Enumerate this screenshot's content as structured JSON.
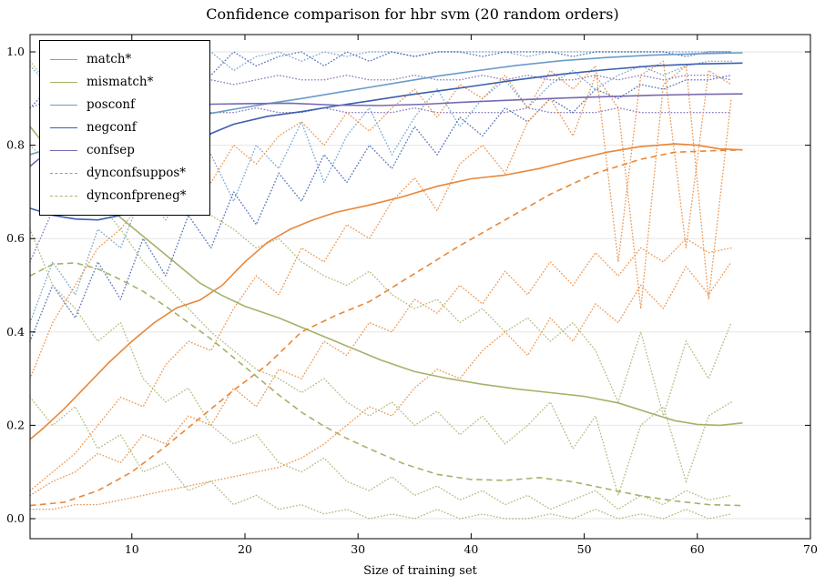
{
  "title": "Confidence comparison for hbr svm (20 random orders)",
  "axes": {
    "xlabel": "Size of training set",
    "x_ticks": [
      10,
      20,
      30,
      40,
      50,
      60,
      70
    ],
    "y_ticks": [
      "0.0",
      "0.2",
      "0.4",
      "0.6",
      "0.8",
      "1.0"
    ],
    "xlim": [
      1,
      70
    ],
    "ylim": [
      -0.043,
      1.037
    ],
    "grid": "horizontal",
    "tick_direction": "in"
  },
  "colors": {
    "orange": "#E8873A",
    "olive": "#A6B16A",
    "lightblue": "#699CC9",
    "navy": "#3D5FAE",
    "purple": "#7769B1",
    "grid": "#e6e6e6",
    "frame": "#000000"
  },
  "legend": [
    {
      "label": "match*",
      "color": "orange",
      "style": "solid"
    },
    {
      "label": "mismatch*",
      "color": "olive",
      "style": "solid"
    },
    {
      "label": "posconf",
      "color": "lightblue",
      "style": "solid"
    },
    {
      "label": "negconf",
      "color": "navy",
      "style": "solid"
    },
    {
      "label": "confsep",
      "color": "purple",
      "style": "solid"
    },
    {
      "label": "dynconfsuppos*",
      "color": "orange",
      "style": "dashed"
    },
    {
      "label": "dynconfpreneg*",
      "color": "olive",
      "style": "dashed"
    }
  ],
  "chart_data": {
    "type": "line",
    "title": "Confidence comparison for hbr svm (20 random orders)",
    "xlabel": "Size of training set",
    "ylabel": "",
    "xlim": [
      1,
      70
    ],
    "ylim": [
      -0.043,
      1.037
    ],
    "legend_position": "upper left",
    "dotted_x": [
      1,
      3,
      5,
      7,
      9,
      11,
      13,
      15,
      17,
      19,
      21,
      23,
      25,
      27,
      29,
      31,
      33,
      35,
      37,
      39,
      41,
      43,
      45,
      47,
      49,
      51,
      53,
      55,
      57,
      59,
      61,
      63
    ],
    "series": [
      {
        "name": "match*",
        "color": "orange",
        "style": "solid",
        "x": [
          1,
          2,
          4,
          6,
          8,
          10,
          12,
          14,
          16,
          18,
          20,
          22,
          24,
          26,
          28,
          31,
          34,
          37,
          40,
          43,
          46,
          49,
          52,
          55,
          58,
          60,
          62,
          64
        ],
        "y": [
          0.17,
          0.19,
          0.235,
          0.285,
          0.335,
          0.38,
          0.42,
          0.452,
          0.468,
          0.5,
          0.55,
          0.592,
          0.62,
          0.64,
          0.656,
          0.672,
          0.69,
          0.712,
          0.728,
          0.736,
          0.75,
          0.768,
          0.785,
          0.797,
          0.803,
          0.8,
          0.792,
          0.79
        ]
      },
      {
        "name": "mismatch*",
        "color": "olive",
        "style": "solid",
        "x": [
          1,
          3,
          5,
          8,
          10,
          12,
          14,
          16,
          18,
          20,
          23,
          26,
          29,
          32,
          35,
          38,
          41,
          44,
          47,
          50,
          53,
          56,
          58,
          60,
          62,
          64
        ],
        "y": [
          0.84,
          0.78,
          0.725,
          0.665,
          0.625,
          0.585,
          0.545,
          0.505,
          0.478,
          0.455,
          0.43,
          0.4,
          0.37,
          0.34,
          0.315,
          0.3,
          0.288,
          0.278,
          0.27,
          0.262,
          0.248,
          0.225,
          0.21,
          0.202,
          0.2,
          0.205
        ]
      },
      {
        "name": "posconf",
        "color": "lightblue",
        "style": "solid",
        "x": [
          1,
          4,
          7,
          10,
          13,
          16,
          19,
          22,
          25,
          28,
          31,
          34,
          37,
          40,
          44,
          48,
          52,
          56,
          60,
          64
        ],
        "y": [
          0.78,
          0.802,
          0.822,
          0.838,
          0.852,
          0.864,
          0.877,
          0.889,
          0.9,
          0.912,
          0.924,
          0.936,
          0.948,
          0.958,
          0.971,
          0.981,
          0.988,
          0.993,
          0.996,
          0.998
        ]
      },
      {
        "name": "negconf",
        "color": "navy",
        "style": "solid",
        "x": [
          1,
          3,
          5,
          7,
          9,
          11,
          13,
          15,
          17,
          19,
          22,
          25,
          28,
          31,
          34,
          37,
          40,
          44,
          48,
          52,
          56,
          60,
          64
        ],
        "y": [
          0.665,
          0.65,
          0.642,
          0.64,
          0.65,
          0.685,
          0.73,
          0.78,
          0.825,
          0.845,
          0.862,
          0.872,
          0.884,
          0.895,
          0.906,
          0.916,
          0.926,
          0.94,
          0.952,
          0.962,
          0.97,
          0.974,
          0.976
        ]
      },
      {
        "name": "confsep",
        "color": "purple",
        "style": "solid",
        "x": [
          1,
          3,
          5,
          8,
          11,
          14,
          17,
          20,
          24,
          28,
          32,
          36,
          40,
          44,
          48,
          52,
          56,
          60,
          64
        ],
        "y": [
          0.755,
          0.795,
          0.825,
          0.856,
          0.872,
          0.882,
          0.888,
          0.889,
          0.89,
          0.886,
          0.885,
          0.888,
          0.893,
          0.897,
          0.901,
          0.904,
          0.907,
          0.909,
          0.91
        ]
      },
      {
        "name": "dynconfsuppos*",
        "color": "orange",
        "style": "dashed",
        "x": [
          1,
          4,
          7,
          10,
          13,
          16,
          19,
          22,
          25,
          28,
          31,
          35,
          39,
          43,
          47,
          51,
          55,
          58,
          61,
          64
        ],
        "y": [
          0.028,
          0.035,
          0.06,
          0.1,
          0.155,
          0.215,
          0.275,
          0.33,
          0.4,
          0.435,
          0.465,
          0.525,
          0.585,
          0.64,
          0.695,
          0.74,
          0.77,
          0.785,
          0.788,
          0.79
        ]
      },
      {
        "name": "dynconfpreneg*",
        "color": "olive",
        "style": "dashed",
        "x": [
          1,
          3,
          5,
          7,
          9,
          11,
          13,
          15,
          17,
          19,
          21,
          23,
          25,
          27,
          29,
          31,
          34,
          37,
          40,
          43,
          46,
          49,
          52,
          55,
          58,
          61,
          64
        ],
        "y": [
          0.52,
          0.545,
          0.548,
          0.535,
          0.512,
          0.487,
          0.455,
          0.42,
          0.385,
          0.345,
          0.305,
          0.265,
          0.228,
          0.198,
          0.172,
          0.15,
          0.118,
          0.095,
          0.084,
          0.082,
          0.088,
          0.079,
          0.064,
          0.049,
          0.038,
          0.03,
          0.028
        ]
      }
    ],
    "band_series": [
      {
        "name": "posconf+std",
        "color": "lightblue",
        "y": [
          0.97,
          0.92,
          0.99,
          0.95,
          1.0,
          0.97,
          0.93,
          0.98,
          1.0,
          0.96,
          0.99,
          1.0,
          0.98,
          1.0,
          0.99,
          1.0,
          1.0,
          0.99,
          1.0,
          1.0,
          1.0,
          1.0,
          0.99,
          1.0,
          1.0,
          1.0,
          1.0,
          1.0,
          1.0,
          1.0,
          1.0,
          1.0
        ]
      },
      {
        "name": "posconf-std",
        "color": "lightblue",
        "y": [
          0.42,
          0.55,
          0.48,
          0.62,
          0.58,
          0.7,
          0.64,
          0.72,
          0.78,
          0.68,
          0.8,
          0.75,
          0.85,
          0.72,
          0.82,
          0.88,
          0.78,
          0.86,
          0.92,
          0.84,
          0.9,
          0.94,
          0.88,
          0.93,
          0.96,
          0.92,
          0.95,
          0.97,
          0.95,
          0.97,
          0.98,
          0.98
        ]
      },
      {
        "name": "negconf+std",
        "color": "navy",
        "y": [
          0.88,
          0.93,
          0.85,
          0.95,
          0.9,
          0.97,
          0.93,
          0.99,
          0.95,
          1.0,
          0.97,
          0.99,
          1.0,
          0.97,
          1.0,
          0.98,
          1.0,
          0.99,
          1.0,
          1.0,
          0.99,
          1.0,
          1.0,
          1.0,
          0.99,
          1.0,
          1.0,
          1.0,
          1.0,
          0.99,
          1.0,
          1.0
        ]
      },
      {
        "name": "negconf-std",
        "color": "navy",
        "y": [
          0.38,
          0.5,
          0.43,
          0.55,
          0.47,
          0.6,
          0.52,
          0.65,
          0.58,
          0.7,
          0.63,
          0.74,
          0.68,
          0.78,
          0.72,
          0.8,
          0.75,
          0.84,
          0.78,
          0.86,
          0.82,
          0.88,
          0.85,
          0.9,
          0.87,
          0.92,
          0.9,
          0.93,
          0.92,
          0.94,
          0.94,
          0.95
        ]
      },
      {
        "name": "confsep+std",
        "color": "purple",
        "y": [
          0.88,
          0.9,
          0.92,
          0.93,
          0.94,
          0.93,
          0.94,
          0.95,
          0.94,
          0.93,
          0.94,
          0.95,
          0.94,
          0.94,
          0.95,
          0.94,
          0.94,
          0.95,
          0.94,
          0.94,
          0.95,
          0.94,
          0.95,
          0.94,
          0.94,
          0.95,
          0.94,
          0.95,
          0.94,
          0.95,
          0.95,
          0.94
        ]
      },
      {
        "name": "confsep-std",
        "color": "purple",
        "y": [
          0.55,
          0.66,
          0.72,
          0.78,
          0.82,
          0.84,
          0.86,
          0.87,
          0.87,
          0.87,
          0.88,
          0.87,
          0.87,
          0.88,
          0.87,
          0.87,
          0.87,
          0.88,
          0.87,
          0.87,
          0.87,
          0.87,
          0.88,
          0.87,
          0.87,
          0.87,
          0.88,
          0.87,
          0.87,
          0.87,
          0.87,
          0.87
        ]
      },
      {
        "name": "match+std",
        "color": "orange",
        "y": [
          0.3,
          0.42,
          0.5,
          0.58,
          0.62,
          0.68,
          0.7,
          0.75,
          0.72,
          0.8,
          0.76,
          0.82,
          0.85,
          0.8,
          0.87,
          0.83,
          0.88,
          0.92,
          0.86,
          0.93,
          0.9,
          0.95,
          0.88,
          0.96,
          0.92,
          0.97,
          0.55,
          0.95,
          0.98,
          0.58,
          0.96,
          0.93
        ]
      },
      {
        "name": "match-std",
        "color": "orange",
        "y": [
          0.05,
          0.08,
          0.1,
          0.14,
          0.12,
          0.18,
          0.16,
          0.22,
          0.2,
          0.28,
          0.24,
          0.32,
          0.3,
          0.38,
          0.35,
          0.42,
          0.4,
          0.47,
          0.44,
          0.5,
          0.46,
          0.53,
          0.48,
          0.55,
          0.5,
          0.57,
          0.52,
          0.58,
          0.55,
          0.6,
          0.57,
          0.58
        ]
      },
      {
        "name": "dynconfsuppos+std",
        "color": "orange",
        "y": [
          0.06,
          0.1,
          0.14,
          0.2,
          0.26,
          0.24,
          0.33,
          0.38,
          0.36,
          0.45,
          0.52,
          0.48,
          0.58,
          0.55,
          0.63,
          0.6,
          0.68,
          0.73,
          0.66,
          0.76,
          0.8,
          0.74,
          0.85,
          0.9,
          0.82,
          0.95,
          0.88,
          0.45,
          0.93,
          0.97,
          0.47,
          0.9
        ]
      },
      {
        "name": "dynconfsuppos-std",
        "color": "orange",
        "y": [
          0.02,
          0.02,
          0.03,
          0.03,
          0.04,
          0.05,
          0.06,
          0.07,
          0.08,
          0.09,
          0.1,
          0.11,
          0.13,
          0.16,
          0.2,
          0.24,
          0.22,
          0.28,
          0.32,
          0.3,
          0.36,
          0.4,
          0.35,
          0.43,
          0.38,
          0.46,
          0.42,
          0.5,
          0.45,
          0.54,
          0.48,
          0.55
        ]
      },
      {
        "name": "mismatch+std",
        "color": "olive",
        "y": [
          0.98,
          0.92,
          0.95,
          0.85,
          0.8,
          0.75,
          0.7,
          0.72,
          0.65,
          0.62,
          0.58,
          0.6,
          0.55,
          0.52,
          0.5,
          0.53,
          0.48,
          0.45,
          0.47,
          0.42,
          0.45,
          0.4,
          0.43,
          0.38,
          0.42,
          0.36,
          0.25,
          0.4,
          0.22,
          0.38,
          0.3,
          0.42
        ]
      },
      {
        "name": "mismatch-std",
        "color": "olive",
        "y": [
          0.62,
          0.5,
          0.45,
          0.38,
          0.42,
          0.3,
          0.25,
          0.28,
          0.2,
          0.16,
          0.18,
          0.12,
          0.1,
          0.13,
          0.08,
          0.06,
          0.09,
          0.05,
          0.07,
          0.04,
          0.06,
          0.03,
          0.05,
          0.02,
          0.04,
          0.06,
          0.02,
          0.05,
          0.03,
          0.06,
          0.04,
          0.05
        ]
      },
      {
        "name": "dynconfpreneg+std",
        "color": "olive",
        "y": [
          0.8,
          0.75,
          0.78,
          0.68,
          0.62,
          0.55,
          0.5,
          0.45,
          0.4,
          0.36,
          0.32,
          0.3,
          0.27,
          0.3,
          0.25,
          0.22,
          0.25,
          0.2,
          0.23,
          0.18,
          0.22,
          0.16,
          0.2,
          0.25,
          0.15,
          0.22,
          0.05,
          0.2,
          0.24,
          0.08,
          0.22,
          0.25
        ]
      },
      {
        "name": "dynconfpreneg-std",
        "color": "olive",
        "y": [
          0.26,
          0.2,
          0.24,
          0.15,
          0.18,
          0.1,
          0.12,
          0.06,
          0.08,
          0.03,
          0.05,
          0.02,
          0.03,
          0.01,
          0.02,
          0.0,
          0.01,
          0.0,
          0.02,
          0.0,
          0.01,
          0.0,
          0.0,
          0.01,
          0.0,
          0.02,
          0.0,
          0.01,
          0.0,
          0.02,
          0.0,
          0.01
        ]
      }
    ]
  }
}
